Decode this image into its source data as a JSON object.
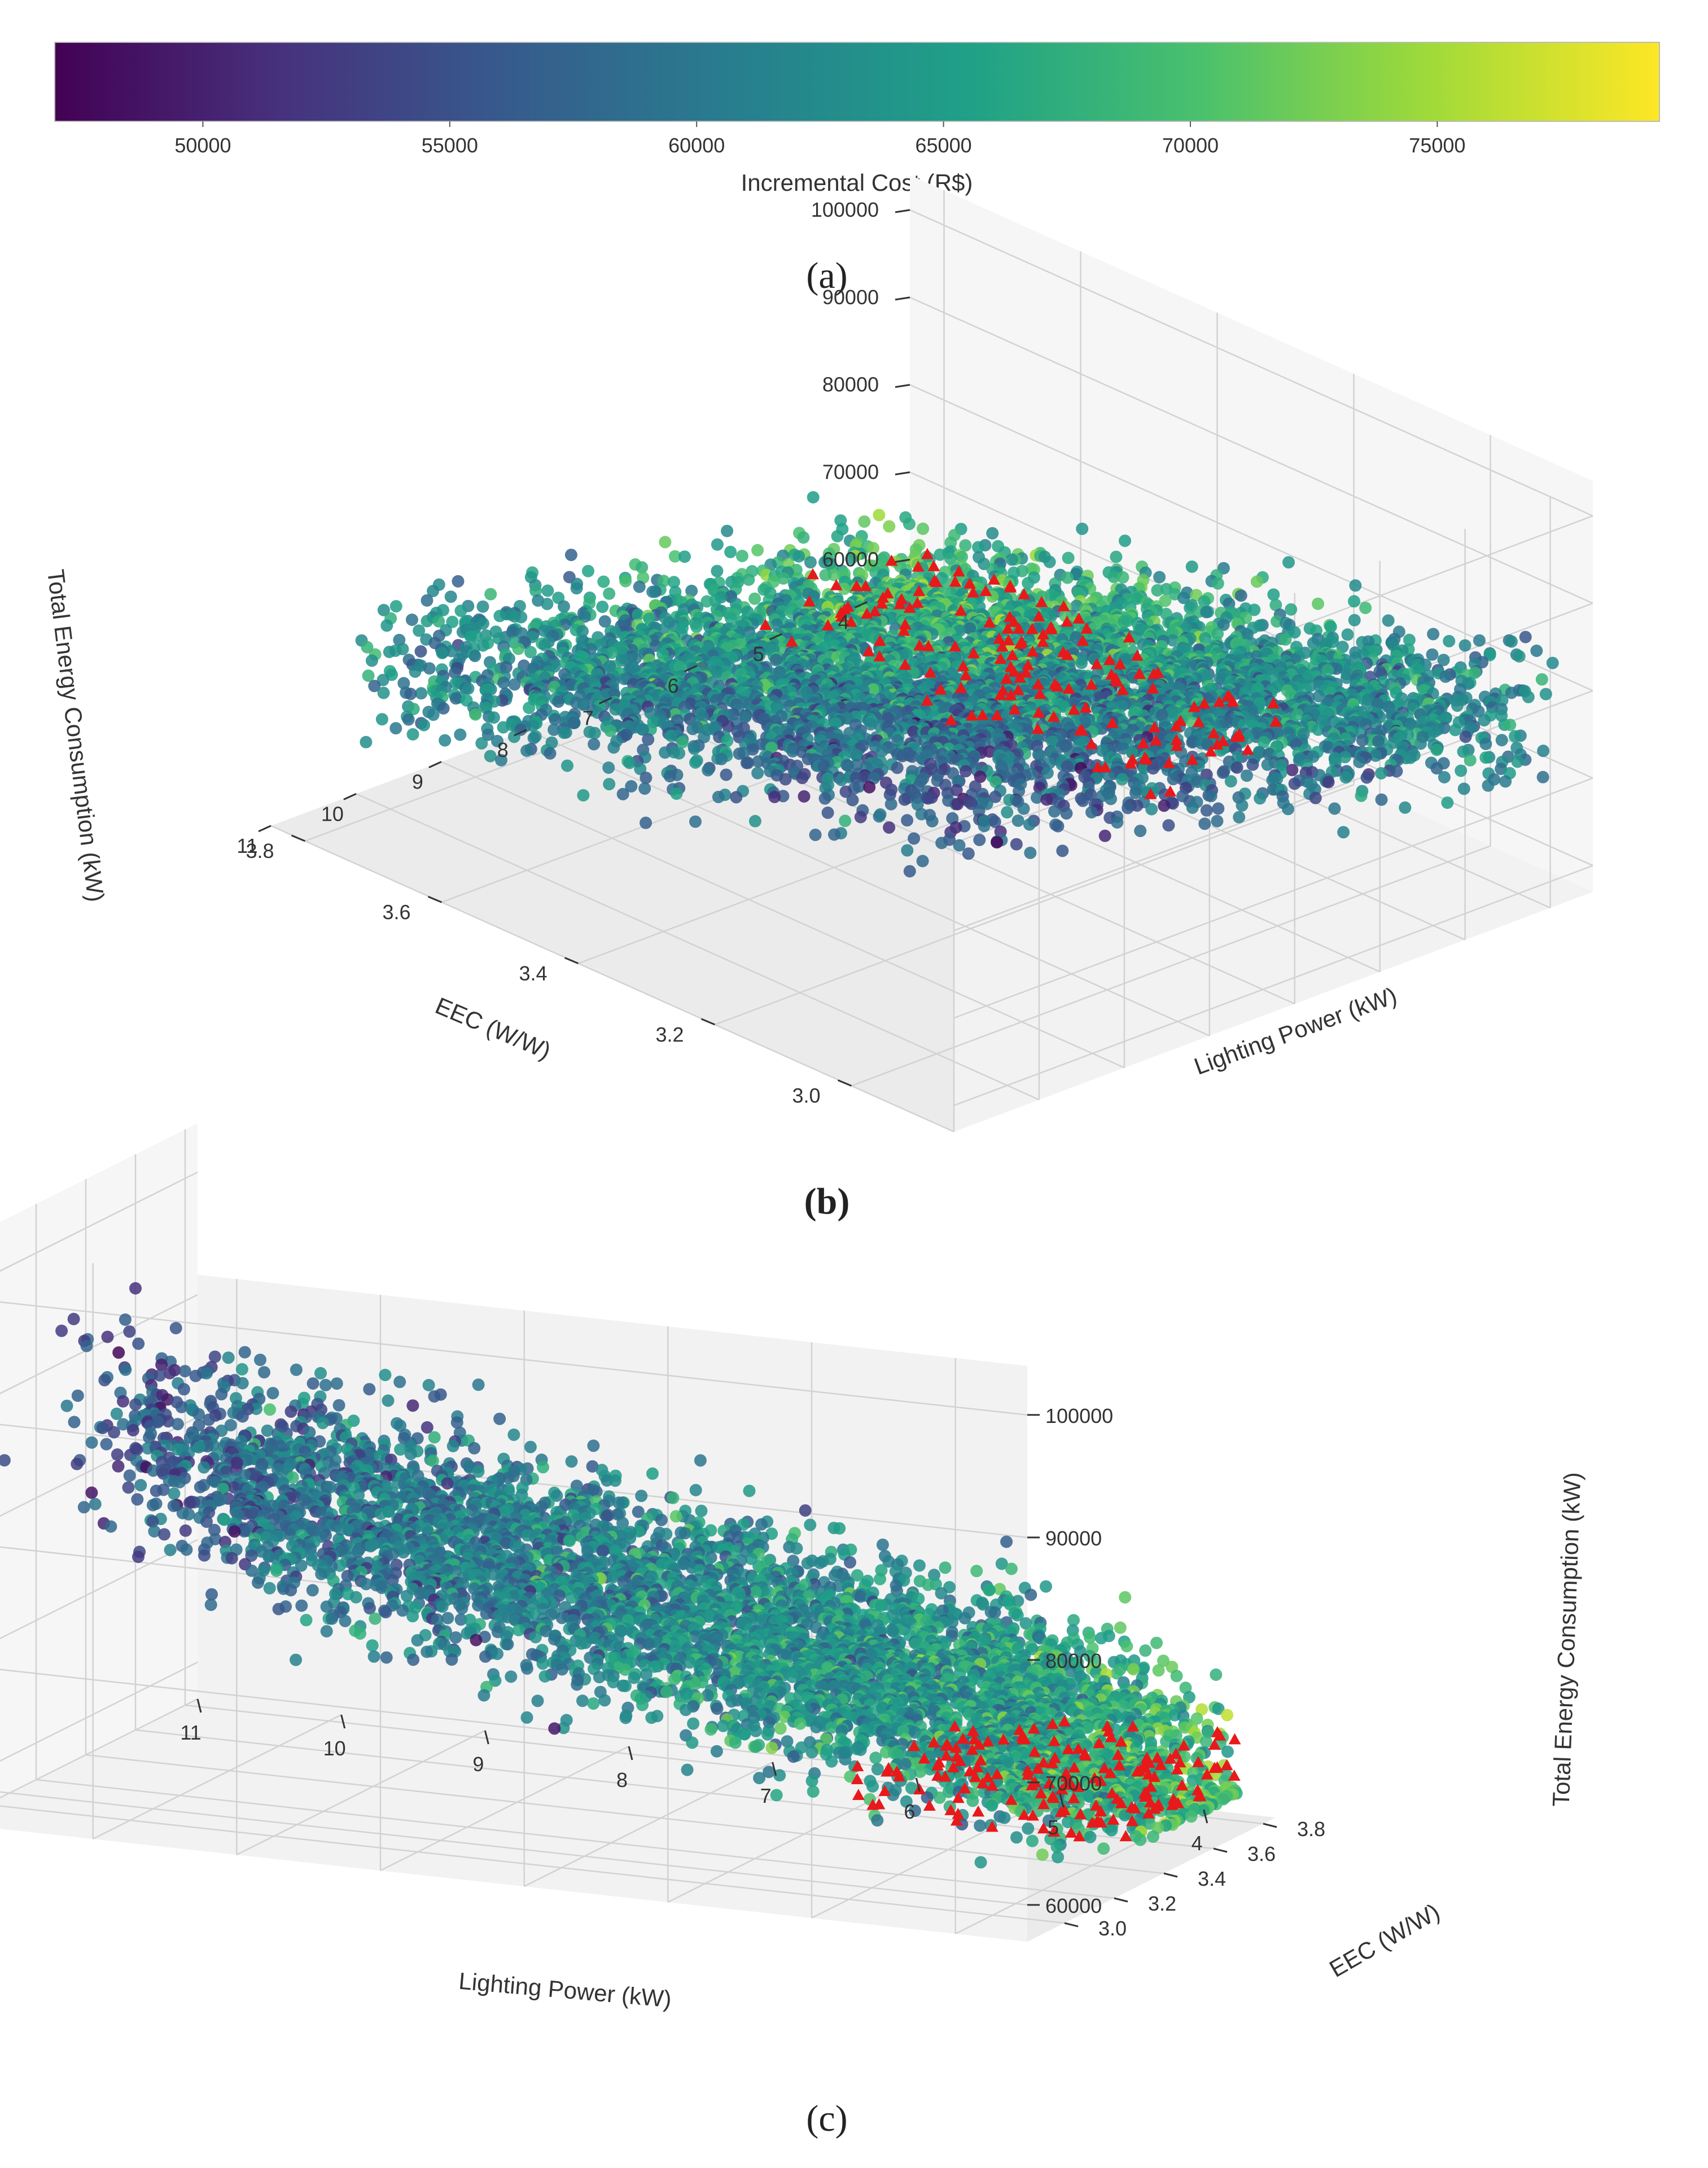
{
  "colorbar": {
    "label": "Incremental Cost (R$)",
    "ticks": [
      "50000",
      "55000",
      "60000",
      "65000",
      "70000",
      "75000"
    ],
    "range": [
      47000,
      79500
    ],
    "colormap": [
      "#440154",
      "#46327e",
      "#365c8d",
      "#277f8e",
      "#1fa187",
      "#4ac16d",
      "#a0da39",
      "#fde725"
    ]
  },
  "panel_labels": {
    "a": "(a)",
    "b": "(b)",
    "c": "(c)"
  },
  "chart_data": [
    {
      "type": "scatter",
      "panel": "(b)",
      "view": "3d",
      "xlabel": "Lighting Power (kW)",
      "ylabel": "EEC (W/W)",
      "zlabel": "Total Energy Consumption (kW)",
      "xticks": [
        "4",
        "5",
        "6",
        "7",
        "8",
        "9",
        "10",
        "11"
      ],
      "yticks": [
        "3.0",
        "3.2",
        "3.4",
        "3.6",
        "3.8"
      ],
      "zticks": [
        "60000",
        "70000",
        "80000",
        "90000",
        "100000"
      ],
      "xlim": [
        3.5,
        11
      ],
      "ylim": [
        2.85,
        3.85
      ],
      "zlim": [
        57000,
        104000
      ],
      "color_variable": "Incremental Cost (R$)",
      "marker_colors": {
        "points": "viridis",
        "pareto": "#e8191b"
      },
      "series": [
        {
          "marker": "circle",
          "n_approx": 6000,
          "lighting_range": [
            3.5,
            11
          ],
          "eec_range": [
            2.85,
            3.85
          ],
          "energy_range": [
            60000,
            102000
          ]
        },
        {
          "marker": "triangle",
          "lighting_range": [
            3.5,
            5.5
          ],
          "eec_range": [
            3.2,
            3.85
          ],
          "energy_range": [
            60000,
            65000
          ]
        }
      ]
    },
    {
      "type": "scatter",
      "panel": "(c)",
      "view": "3d",
      "xlabel": "Lighting Power (kW)",
      "ylabel": "EEC (W/W)",
      "zlabel": "Total Energy Consumption (kW)",
      "xticks": [
        "4",
        "5",
        "6",
        "7",
        "8",
        "9",
        "10",
        "11"
      ],
      "yticks": [
        "3.0",
        "3.2",
        "3.4",
        "3.6",
        "3.8"
      ],
      "zticks": [
        "60000",
        "70000",
        "80000",
        "90000",
        "100000"
      ],
      "xlim": [
        3.5,
        11
      ],
      "ylim": [
        2.85,
        3.85
      ],
      "zlim": [
        57000,
        104000
      ],
      "color_variable": "Incremental Cost (R$)",
      "marker_colors": {
        "points": "viridis",
        "pareto": "#e8191b"
      },
      "series": [
        {
          "marker": "circle",
          "n_approx": 6000,
          "lighting_range": [
            3.5,
            11
          ],
          "eec_range": [
            2.85,
            3.85
          ],
          "energy_range": [
            60000,
            102000
          ]
        },
        {
          "marker": "triangle",
          "lighting_range": [
            3.5,
            5.5
          ],
          "eec_range": [
            3.2,
            3.85
          ],
          "energy_range": [
            60000,
            65000
          ]
        }
      ]
    }
  ]
}
